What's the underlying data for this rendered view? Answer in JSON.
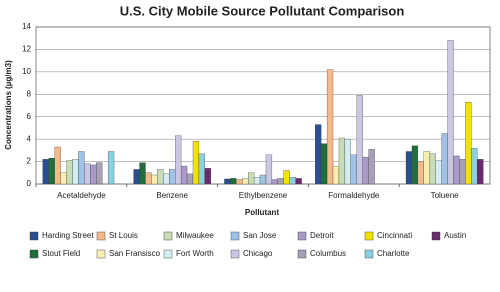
{
  "chart_data": {
    "type": "bar",
    "title": "U.S. City Mobile Source Pollutant Comparison",
    "x_label": "Pollutant",
    "y_label": "Concentrations (µg/m3)",
    "categories": [
      "Acetaldehyde",
      "Benzene",
      "Ethylbenzene",
      "Formaldehyde",
      "Toluene"
    ],
    "series": [
      {
        "name": "Harding Street",
        "color": "#2a4f8f",
        "values": [
          2.2,
          1.3,
          0.45,
          5.3,
          2.9
        ]
      },
      {
        "name": "Stout Field",
        "color": "#1f6e3c",
        "values": [
          2.3,
          1.9,
          0.5,
          3.6,
          3.4
        ]
      },
      {
        "name": "St Louis",
        "color": "#f6b98a",
        "values": [
          3.3,
          1.0,
          0.4,
          10.2,
          2.0
        ]
      },
      {
        "name": "San Fransisco",
        "color": "#f8eeb0",
        "values": [
          1.0,
          0.8,
          0.5,
          1.6,
          2.9
        ]
      },
      {
        "name": "Milwaukee",
        "color": "#c8dcb8",
        "values": [
          2.1,
          1.3,
          1.0,
          4.1,
          2.7
        ]
      },
      {
        "name": "Fort Worth",
        "color": "#d4ecf4",
        "values": [
          2.2,
          0.9,
          0.6,
          4.0,
          2.1
        ]
      },
      {
        "name": "San Jose",
        "color": "#9fc3e6",
        "values": [
          2.9,
          1.3,
          0.8,
          2.6,
          4.5
        ]
      },
      {
        "name": "Chicago",
        "color": "#cbc6e2",
        "values": [
          1.8,
          4.3,
          2.6,
          7.9,
          12.8
        ]
      },
      {
        "name": "Detroit",
        "color": "#a99ac8",
        "values": [
          1.7,
          1.6,
          0.4,
          2.4,
          2.5
        ]
      },
      {
        "name": "Columbus",
        "color": "#a8a0b8",
        "values": [
          1.9,
          0.9,
          0.5,
          3.1,
          2.2
        ]
      },
      {
        "name": "Cincinnati",
        "color": "#f2e200",
        "values": [
          null,
          3.8,
          1.2,
          null,
          7.3
        ]
      },
      {
        "name": "Charlotte",
        "color": "#8ccfe0",
        "values": [
          2.9,
          2.7,
          0.6,
          null,
          3.2
        ]
      },
      {
        "name": "Austin",
        "color": "#6a2a6e",
        "values": [
          null,
          1.4,
          0.5,
          null,
          2.2
        ]
      }
    ],
    "ylim": [
      0,
      14
    ],
    "yticks": [
      0,
      2,
      4,
      6,
      8,
      10,
      12,
      14
    ],
    "grid": true,
    "legend": "bottom"
  }
}
